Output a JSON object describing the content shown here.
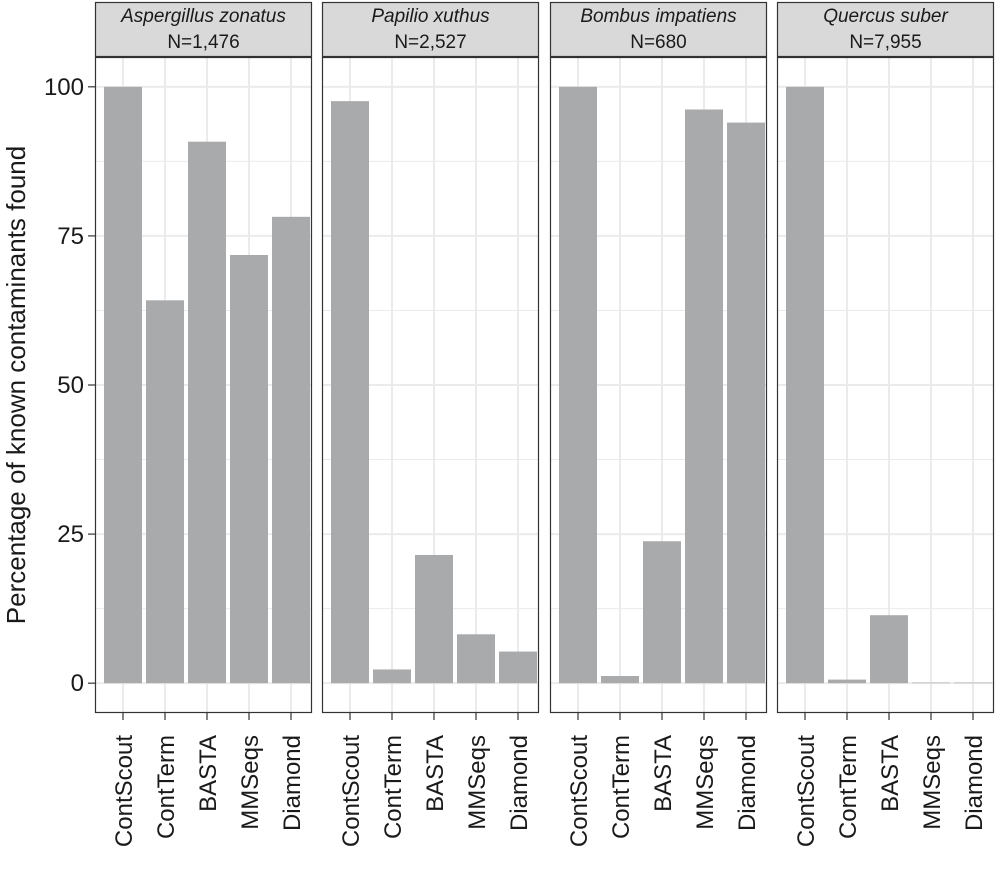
{
  "chart_data": {
    "type": "bar",
    "ylabel": "Percentage of known contaminants found",
    "xlabel": "",
    "ylim": [
      -5,
      105
    ],
    "yticks": [
      0,
      25,
      50,
      75,
      100
    ],
    "categories": [
      "ContScout",
      "ContTerm",
      "BASTA",
      "MMSeqs",
      "Diamond"
    ],
    "grid": true,
    "colors": {
      "bar": "#a9aaac",
      "grid": "#ebebeb",
      "strip": "#d9d9d9",
      "border": "#333333"
    },
    "panels": [
      {
        "title": "Aspergillus zonatus",
        "n_label": "N=1,476",
        "values": [
          100,
          64.2,
          90.8,
          71.8,
          78.2
        ]
      },
      {
        "title": "Papilio xuthus",
        "n_label": "N=2,527",
        "values": [
          97.6,
          2.3,
          21.5,
          8.2,
          5.3
        ]
      },
      {
        "title": "Bombus impatiens",
        "n_label": "N=680",
        "values": [
          100,
          1.2,
          23.8,
          96.2,
          94.0
        ]
      },
      {
        "title": "Quercus suber",
        "n_label": "N=7,955",
        "values": [
          100,
          0.6,
          11.4,
          0.1,
          0.0
        ]
      }
    ]
  }
}
